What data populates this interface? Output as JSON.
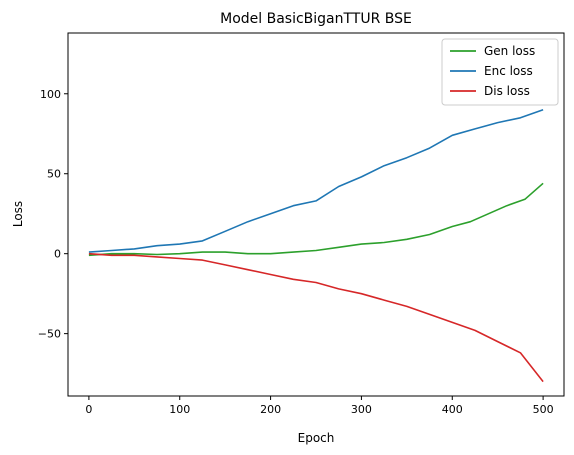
{
  "chart_data": {
    "type": "line",
    "title": "Model BasicBiganTTUR BSE",
    "xlabel": "Epoch",
    "ylabel": "Loss",
    "xlim": [
      -23,
      523
    ],
    "ylim": [
      -89,
      138
    ],
    "xticks": [
      0,
      100,
      200,
      300,
      400,
      500
    ],
    "yticks": [
      -50,
      0,
      50,
      100
    ],
    "grid": false,
    "legend_position": "top-right",
    "series": [
      {
        "name": "Gen loss",
        "color": "#2ca02c",
        "x": [
          0,
          25,
          50,
          75,
          100,
          125,
          150,
          175,
          200,
          225,
          250,
          275,
          300,
          325,
          350,
          375,
          400,
          420,
          440,
          460,
          480,
          500
        ],
        "y": [
          -1,
          0,
          0,
          -0.5,
          0,
          1,
          1,
          0,
          0,
          1,
          2,
          4,
          6,
          7,
          9,
          12,
          17,
          20,
          25,
          30,
          34,
          44
        ]
      },
      {
        "name": "Enc loss",
        "color": "#1f77b4",
        "x": [
          0,
          25,
          50,
          75,
          100,
          125,
          150,
          175,
          200,
          225,
          250,
          275,
          300,
          325,
          350,
          375,
          400,
          425,
          450,
          475,
          500
        ],
        "y": [
          1,
          2,
          3,
          5,
          6,
          8,
          14,
          20,
          25,
          30,
          33,
          42,
          48,
          55,
          60,
          66,
          74,
          78,
          82,
          85,
          90
        ]
      },
      {
        "name": "Dis loss",
        "color": "#d62728",
        "x": [
          0,
          25,
          50,
          75,
          100,
          125,
          150,
          175,
          200,
          225,
          250,
          275,
          300,
          325,
          350,
          375,
          400,
          425,
          450,
          475,
          500
        ],
        "y": [
          0,
          -1,
          -1,
          -2,
          -3,
          -4,
          -7,
          -10,
          -13,
          -16,
          -18,
          -22,
          -25,
          -29,
          -33,
          -38,
          -43,
          -48,
          -55,
          -62,
          -80
        ]
      }
    ]
  }
}
